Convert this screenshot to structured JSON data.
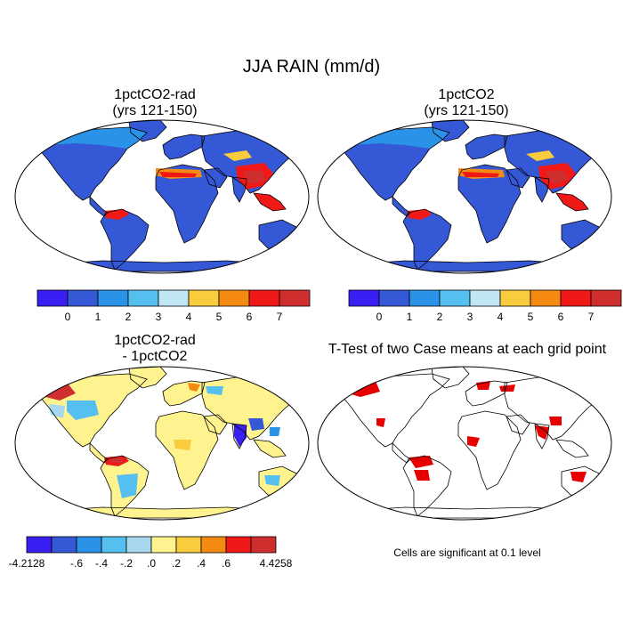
{
  "figure": {
    "title": "JJA RAIN (mm/d)"
  },
  "panels": [
    {
      "id": "p1",
      "title_line1": "1pctCO2-rad",
      "title_line2": "(yrs 121-150)",
      "field": "abs"
    },
    {
      "id": "p2",
      "title_line1": "1pctCO2",
      "title_line2": "(yrs 121-150)",
      "field": "abs"
    },
    {
      "id": "p3",
      "title_line1": "1pctCO2-rad",
      "title_line2": "- 1pctCO2",
      "field": "diff"
    },
    {
      "id": "p4",
      "title_line1": "T-Test of two Case means at each grid point",
      "title_line2": "",
      "field": "ttest"
    }
  ],
  "colorbar_abs": {
    "colors": [
      "#3a1ff2",
      "#3558d6",
      "#2a93e8",
      "#55bff0",
      "#bfe6f2",
      "#f8cc3c",
      "#f58a12",
      "#f11818",
      "#cf2e2e"
    ],
    "labels": [
      "0",
      "1",
      "2",
      "3",
      "4",
      "5",
      "6",
      "7"
    ]
  },
  "colorbar_diff": {
    "colors": [
      "#3a1ff2",
      "#3558d6",
      "#2a93e8",
      "#55bff0",
      "#a7d8f0",
      "#fff38f",
      "#f8cc3c",
      "#f58a12",
      "#f11818",
      "#cf2e2e"
    ],
    "labels": [
      "-4.2128",
      "-.6",
      "-.4",
      "-.2",
      ".0",
      ".2",
      ".4",
      ".6",
      "4.4258"
    ]
  },
  "ttest_note": "Cells are significant at 0.1 level",
  "map_colors": {
    "ocean": "#ffffff",
    "land_base": "#3558d6",
    "diff_land_base": "#fff38f",
    "significant": "#e60000",
    "outline": "#000000"
  }
}
